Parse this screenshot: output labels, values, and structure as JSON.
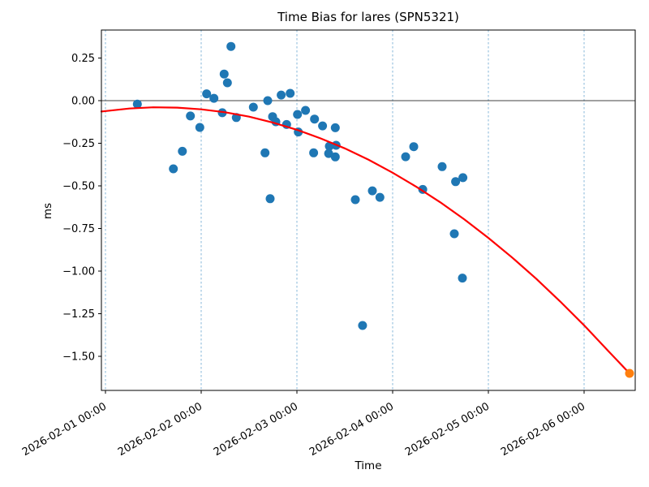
{
  "figure": {
    "title": "Time Bias for lares (SPN5321)",
    "xlabel": "Time",
    "ylabel": "ms"
  },
  "chart_data": {
    "type": "scatter",
    "title": "Time Bias for lares (SPN5321)",
    "xlabel": "Time",
    "ylabel": "ms",
    "x_unit": "days since 2026-02-01 00:00",
    "xlim_days": [
      -0.042,
      5.534
    ],
    "ylim_ms": [
      -1.7,
      0.414
    ],
    "grid": "vertical dashed lines at daily ticks only",
    "zero_line": true,
    "legend": "none",
    "x_ticks": [
      {
        "t": 0,
        "label": "2026-02-01 00:00"
      },
      {
        "t": 1,
        "label": "2026-02-02 00:00"
      },
      {
        "t": 2,
        "label": "2026-02-03 00:00"
      },
      {
        "t": 3,
        "label": "2026-02-04 00:00"
      },
      {
        "t": 4,
        "label": "2026-02-05 00:00"
      },
      {
        "t": 5,
        "label": "2026-02-06 00:00"
      }
    ],
    "y_ticks": [
      {
        "v": 0.25,
        "label": "0.25"
      },
      {
        "v": 0.0,
        "label": "0.00"
      },
      {
        "v": -0.25,
        "label": "−0.25"
      },
      {
        "v": -0.5,
        "label": "−0.50"
      },
      {
        "v": -0.75,
        "label": "−0.75"
      },
      {
        "v": -1.0,
        "label": "−1.00"
      },
      {
        "v": -1.25,
        "label": "−1.25"
      },
      {
        "v": -1.5,
        "label": "−1.50"
      }
    ],
    "style": {
      "point_color": "#1f77b4",
      "latest_point_color": "#ff7f0e",
      "trend_color": "#ff0000",
      "grid_color": "#7ab0d4",
      "axis_color": "#000000",
      "background": "#ffffff"
    },
    "series": [
      {
        "name": "time-bias-measurements",
        "type": "scatter",
        "color": "#1f77b4",
        "points": [
          [
            0.333,
            -0.02
          ],
          [
            0.709,
            -0.4
          ],
          [
            0.803,
            -0.297
          ],
          [
            0.887,
            -0.09
          ],
          [
            0.986,
            -0.157
          ],
          [
            1.057,
            0.04
          ],
          [
            1.133,
            0.014
          ],
          [
            1.22,
            -0.071
          ],
          [
            1.24,
            0.156
          ],
          [
            1.274,
            0.105
          ],
          [
            1.311,
            0.318
          ],
          [
            1.367,
            -0.099
          ],
          [
            1.545,
            -0.038
          ],
          [
            1.667,
            -0.306
          ],
          [
            1.695,
            0.0
          ],
          [
            1.72,
            -0.575
          ],
          [
            1.746,
            -0.094
          ],
          [
            1.78,
            -0.124
          ],
          [
            1.836,
            0.033
          ],
          [
            1.892,
            -0.14
          ],
          [
            1.93,
            0.043
          ],
          [
            2.006,
            -0.081
          ],
          [
            2.014,
            -0.184
          ],
          [
            2.09,
            -0.057
          ],
          [
            2.175,
            -0.306
          ],
          [
            2.184,
            -0.108
          ],
          [
            2.268,
            -0.148
          ],
          [
            2.331,
            -0.31
          ],
          [
            2.339,
            -0.267
          ],
          [
            2.401,
            -0.33
          ],
          [
            2.409,
            -0.262
          ],
          [
            2.401,
            -0.159
          ],
          [
            2.61,
            -0.581
          ],
          [
            2.686,
            -1.319
          ],
          [
            2.788,
            -0.529
          ],
          [
            2.867,
            -0.567
          ],
          [
            3.136,
            -0.329
          ],
          [
            3.22,
            -0.27
          ],
          [
            3.314,
            -0.521
          ],
          [
            3.517,
            -0.387
          ],
          [
            3.644,
            -0.781
          ],
          [
            3.658,
            -0.475
          ],
          [
            3.734,
            -0.452
          ],
          [
            3.729,
            -1.041
          ]
        ]
      },
      {
        "name": "latest-extrapolated-point",
        "type": "scatter",
        "color": "#ff7f0e",
        "points": [
          [
            5.475,
            -1.6
          ]
        ]
      },
      {
        "name": "quadratic-fit",
        "type": "line",
        "color": "#ff0000",
        "points": [
          [
            -0.042,
            -0.064
          ],
          [
            0.25,
            -0.046
          ],
          [
            0.5,
            -0.039
          ],
          [
            0.75,
            -0.041
          ],
          [
            1.0,
            -0.051
          ],
          [
            1.25,
            -0.068
          ],
          [
            1.5,
            -0.094
          ],
          [
            1.75,
            -0.129
          ],
          [
            2.0,
            -0.171
          ],
          [
            2.25,
            -0.222
          ],
          [
            2.5,
            -0.28
          ],
          [
            2.75,
            -0.347
          ],
          [
            3.0,
            -0.423
          ],
          [
            3.25,
            -0.506
          ],
          [
            3.5,
            -0.597
          ],
          [
            3.75,
            -0.697
          ],
          [
            4.0,
            -0.805
          ],
          [
            4.25,
            -0.921
          ],
          [
            4.5,
            -1.045
          ],
          [
            4.75,
            -1.178
          ],
          [
            5.0,
            -1.318
          ],
          [
            5.25,
            -1.467
          ],
          [
            5.475,
            -1.6
          ]
        ]
      }
    ]
  }
}
